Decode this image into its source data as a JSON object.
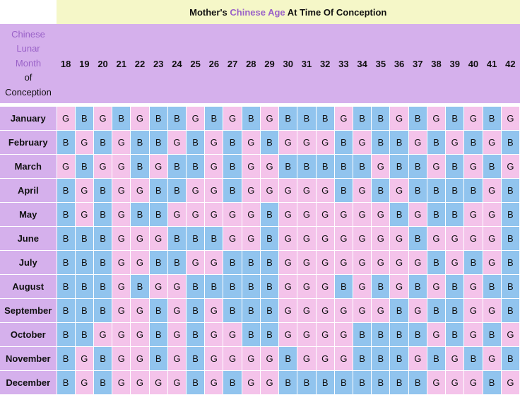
{
  "title": {
    "prefix": "Mother's ",
    "accent": "Chinese Age",
    "suffix": " At Time Of Conception"
  },
  "row_header": {
    "line1": "Chinese",
    "line2": "Lunar",
    "line3": "Month",
    "line4": "of",
    "line5": "Conception"
  },
  "colors": {
    "boy": "#91c4ee",
    "girl": "#f4c3ea",
    "header": "#d5b0ec",
    "title_bg": "#f5f7c8",
    "accent_text": "#9a62c8"
  },
  "ages": [
    "18",
    "19",
    "20",
    "21",
    "22",
    "23",
    "24",
    "25",
    "26",
    "27",
    "28",
    "29",
    "30",
    "31",
    "32",
    "33",
    "34",
    "35",
    "36",
    "37",
    "38",
    "39",
    "40",
    "41",
    "42"
  ],
  "rows": [
    {
      "month": "January",
      "cells": [
        "G",
        "B",
        "G",
        "B",
        "G",
        "B",
        "B",
        "G",
        "B",
        "G",
        "B",
        "G",
        "B",
        "B",
        "B",
        "G",
        "B",
        "B",
        "G",
        "B",
        "G",
        "B",
        "G",
        "B",
        "G"
      ]
    },
    {
      "month": "February",
      "cells": [
        "B",
        "G",
        "B",
        "G",
        "B",
        "B",
        "G",
        "B",
        "G",
        "B",
        "G",
        "B",
        "G",
        "G",
        "G",
        "B",
        "G",
        "B",
        "B",
        "G",
        "B",
        "G",
        "B",
        "G",
        "B"
      ]
    },
    {
      "month": "March",
      "cells": [
        "G",
        "B",
        "G",
        "G",
        "B",
        "G",
        "B",
        "B",
        "G",
        "B",
        "G",
        "G",
        "B",
        "B",
        "B",
        "B",
        "B",
        "G",
        "B",
        "B",
        "G",
        "B",
        "G",
        "B",
        "G"
      ]
    },
    {
      "month": "April",
      "cells": [
        "B",
        "G",
        "B",
        "G",
        "G",
        "B",
        "B",
        "G",
        "G",
        "B",
        "G",
        "G",
        "G",
        "G",
        "G",
        "B",
        "G",
        "B",
        "G",
        "B",
        "B",
        "B",
        "B",
        "G",
        "B"
      ]
    },
    {
      "month": "May",
      "cells": [
        "B",
        "G",
        "B",
        "G",
        "B",
        "B",
        "G",
        "G",
        "G",
        "G",
        "G",
        "B",
        "G",
        "G",
        "G",
        "G",
        "G",
        "G",
        "B",
        "G",
        "B",
        "B",
        "G",
        "G",
        "B"
      ]
    },
    {
      "month": "June",
      "cells": [
        "B",
        "B",
        "B",
        "G",
        "G",
        "G",
        "B",
        "B",
        "B",
        "G",
        "G",
        "B",
        "G",
        "G",
        "G",
        "G",
        "G",
        "G",
        "G",
        "B",
        "G",
        "G",
        "G",
        "G",
        "B"
      ]
    },
    {
      "month": "July",
      "cells": [
        "B",
        "B",
        "B",
        "G",
        "G",
        "B",
        "B",
        "G",
        "G",
        "B",
        "B",
        "B",
        "G",
        "G",
        "G",
        "G",
        "G",
        "G",
        "G",
        "G",
        "B",
        "G",
        "B",
        "G",
        "B"
      ]
    },
    {
      "month": "August",
      "cells": [
        "B",
        "B",
        "B",
        "G",
        "B",
        "G",
        "G",
        "B",
        "B",
        "B",
        "B",
        "B",
        "G",
        "G",
        "G",
        "B",
        "G",
        "B",
        "G",
        "B",
        "G",
        "B",
        "G",
        "B",
        "B"
      ]
    },
    {
      "month": "September",
      "cells": [
        "B",
        "B",
        "B",
        "G",
        "G",
        "B",
        "G",
        "B",
        "G",
        "B",
        "B",
        "B",
        "G",
        "G",
        "G",
        "G",
        "G",
        "G",
        "B",
        "G",
        "B",
        "B",
        "G",
        "G",
        "B"
      ]
    },
    {
      "month": "October",
      "cells": [
        "B",
        "B",
        "G",
        "G",
        "G",
        "B",
        "G",
        "B",
        "G",
        "G",
        "B",
        "B",
        "G",
        "G",
        "G",
        "G",
        "B",
        "B",
        "B",
        "B",
        "G",
        "B",
        "G",
        "B",
        "G"
      ]
    },
    {
      "month": "November",
      "cells": [
        "B",
        "G",
        "B",
        "G",
        "G",
        "B",
        "G",
        "B",
        "G",
        "G",
        "G",
        "G",
        "B",
        "G",
        "G",
        "G",
        "B",
        "B",
        "B",
        "G",
        "B",
        "G",
        "B",
        "G",
        "B"
      ]
    },
    {
      "month": "December",
      "cells": [
        "B",
        "G",
        "B",
        "G",
        "G",
        "G",
        "G",
        "B",
        "G",
        "B",
        "G",
        "G",
        "B",
        "B",
        "B",
        "B",
        "B",
        "B",
        "B",
        "B",
        "G",
        "G",
        "G",
        "B",
        "G"
      ]
    }
  ]
}
